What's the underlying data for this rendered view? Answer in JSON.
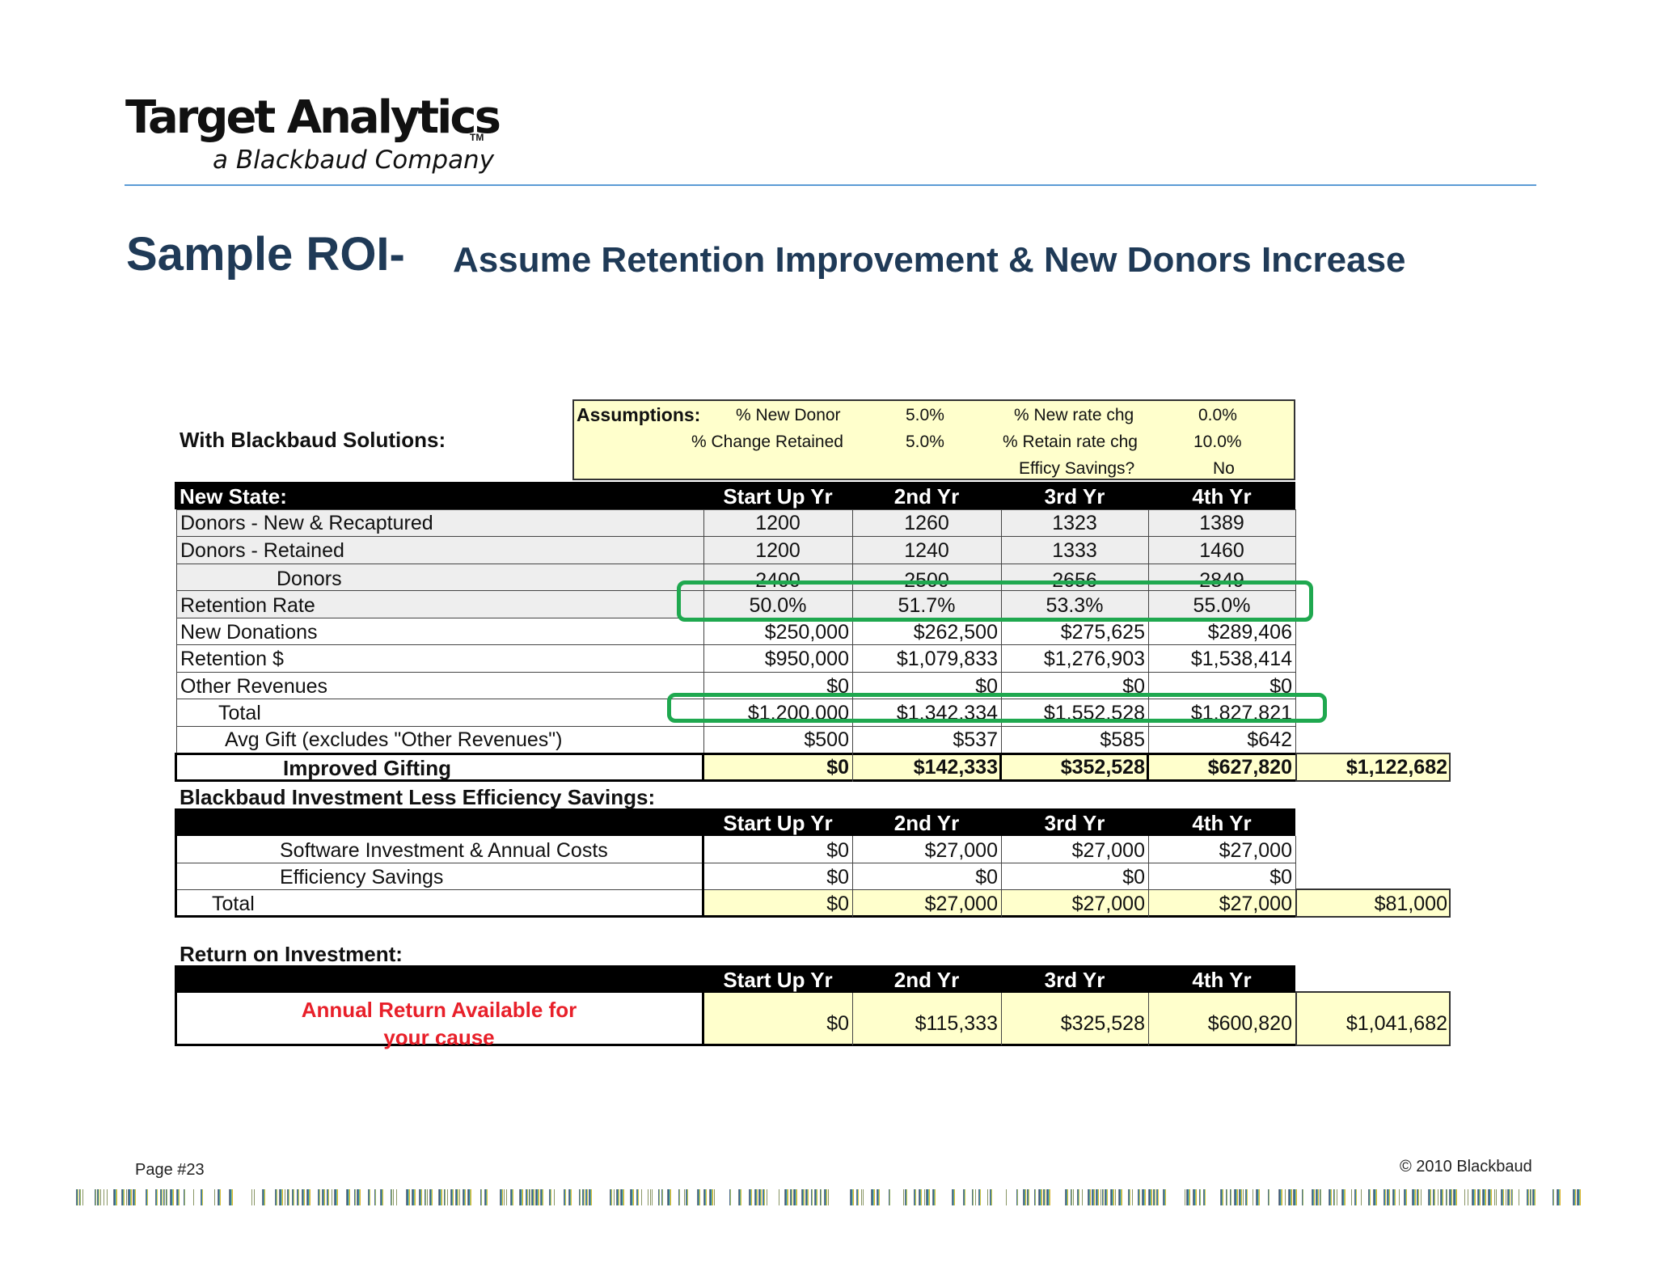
{
  "header": {
    "logo_main": "Target Analytics",
    "logo_tm": "TM",
    "logo_sub": "a Blackbaud Company"
  },
  "title": {
    "main": "Sample ROI-",
    "sub": "Assume Retention Improvement & New  Donors Increase"
  },
  "section_with_solutions": "With Blackbaud Solutions:",
  "assumptions": {
    "label": "Assumptions:",
    "new_donor_label": "% New Donor",
    "new_donor_value": "5.0%",
    "new_rate_chg_label": "% New rate chg",
    "new_rate_chg_value": "0.0%",
    "change_retained_label": "% Change Retained",
    "change_retained_value": "5.0%",
    "retain_rate_chg_label": "% Retain rate chg",
    "retain_rate_chg_value": "10.0%",
    "efficy_savings_label": "Efficy Savings?",
    "efficy_savings_value": "No"
  },
  "year_headers": [
    "Start Up Yr",
    "2nd Yr",
    "3rd Yr",
    "4th Yr"
  ],
  "new_state": {
    "header": "New State:",
    "rows": [
      {
        "label": "Donors - New & Recaptured",
        "values": [
          "1200",
          "1260",
          "1323",
          "1389"
        ]
      },
      {
        "label": "Donors - Retained",
        "values": [
          "1200",
          "1240",
          "1333",
          "1460"
        ]
      },
      {
        "label": "Donors",
        "values": [
          "2400",
          "2500",
          "2656",
          "2849"
        ]
      },
      {
        "label": "Retention Rate",
        "values": [
          "50.0%",
          "51.7%",
          "53.3%",
          "55.0%"
        ]
      },
      {
        "label": "New Donations",
        "values": [
          "$250,000",
          "$262,500",
          "$275,625",
          "$289,406"
        ]
      },
      {
        "label": "Retention $",
        "values": [
          "$950,000",
          "$1,079,833",
          "$1,276,903",
          "$1,538,414"
        ]
      },
      {
        "label": "Other Revenues",
        "values": [
          "$0",
          "$0",
          "$0",
          "$0"
        ]
      },
      {
        "label": "Total",
        "values": [
          "$1,200,000",
          "$1,342,334",
          "$1,552,528",
          "$1,827,821"
        ]
      },
      {
        "label": "Avg Gift (excludes \"Other Revenues\")",
        "values": [
          "$500",
          "$537",
          "$585",
          "$642"
        ]
      }
    ],
    "improved_gifting": {
      "label": "Improved Gifting",
      "values": [
        "$0",
        "$142,333",
        "$352,528",
        "$627,820"
      ],
      "total": "$1,122,682"
    }
  },
  "investment": {
    "header": "Blackbaud Investment Less Efficiency Savings:",
    "rows": [
      {
        "label": "Software Investment & Annual Costs",
        "values": [
          "$0",
          "$27,000",
          "$27,000",
          "$27,000"
        ]
      },
      {
        "label": "Efficiency Savings",
        "values": [
          "$0",
          "$0",
          "$0",
          "$0"
        ]
      }
    ],
    "total": {
      "label": "Total",
      "values": [
        "$0",
        "$27,000",
        "$27,000",
        "$27,000"
      ],
      "total": "$81,000"
    }
  },
  "roi": {
    "header": "Return on Investment:",
    "label_line1": "Annual Return Available for",
    "label_line2": "your cause",
    "values": [
      "$0",
      "$115,333",
      "$325,528",
      "$600,820"
    ],
    "total": "$1,041,682"
  },
  "footer": {
    "page": "Page #23",
    "copyright": "© 2010 Blackbaud"
  },
  "colors": {
    "title": "#1f3a57",
    "highlight_box": "#1fa84f",
    "yellow_fill": "#ffffcc",
    "roi_label": "#e8202a",
    "header_rule": "#5b9bd5"
  }
}
